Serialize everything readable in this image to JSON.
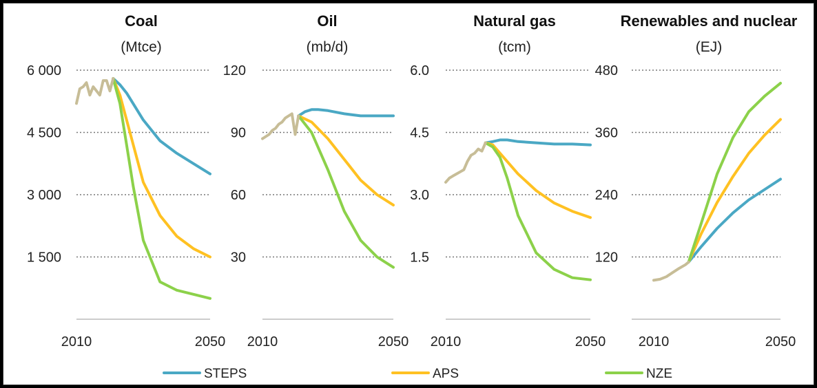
{
  "chart_data": [
    {
      "type": "line",
      "title": "Coal",
      "unit": "(Mtce)",
      "ylim": [
        0,
        6000
      ],
      "xlim": [
        2010,
        2050
      ],
      "y_ticks": [
        1500,
        3000,
        4500,
        6000
      ],
      "y_tick_labels": [
        "1 500",
        "3 000",
        "4 500",
        "6 000"
      ],
      "x_tick_labels": [
        "2010",
        "2050"
      ],
      "history": {
        "x": [
          2010,
          2011,
          2012,
          2013,
          2014,
          2015,
          2016,
          2017,
          2018,
          2019,
          2020,
          2021
        ],
        "values": [
          5200,
          5550,
          5600,
          5700,
          5400,
          5600,
          5500,
          5400,
          5750,
          5750,
          5500,
          5800
        ]
      },
      "series": [
        {
          "name": "STEPS",
          "x": [
            2021,
            2023,
            2025,
            2030,
            2035,
            2040,
            2045,
            2050
          ],
          "values": [
            5800,
            5650,
            5450,
            4800,
            4300,
            4000,
            3750,
            3500
          ]
        },
        {
          "name": "APS",
          "x": [
            2021,
            2023,
            2025,
            2030,
            2035,
            2040,
            2045,
            2050
          ],
          "values": [
            5800,
            5400,
            4800,
            3300,
            2500,
            2000,
            1700,
            1500
          ]
        },
        {
          "name": "NZE",
          "x": [
            2021,
            2023,
            2025,
            2027,
            2030,
            2035,
            2040,
            2045,
            2050
          ],
          "values": [
            5800,
            5200,
            4200,
            3200,
            1900,
            900,
            700,
            600,
            500
          ]
        }
      ]
    },
    {
      "type": "line",
      "title": "Oil",
      "unit": "(mb/d)",
      "ylim": [
        0,
        120
      ],
      "xlim": [
        2010,
        2050
      ],
      "y_ticks": [
        30,
        60,
        90,
        120
      ],
      "y_tick_labels": [
        "30",
        "60",
        "90",
        "120"
      ],
      "x_tick_labels": [
        "2010",
        "2050"
      ],
      "history": {
        "x": [
          2010,
          2011,
          2012,
          2013,
          2014,
          2015,
          2016,
          2017,
          2018,
          2019,
          2020,
          2021
        ],
        "values": [
          87,
          88,
          89,
          91,
          92,
          94,
          95,
          97,
          98,
          99,
          89,
          98
        ]
      },
      "series": [
        {
          "name": "STEPS",
          "x": [
            2021,
            2023,
            2025,
            2027,
            2030,
            2035,
            2040,
            2045,
            2050
          ],
          "values": [
            98,
            100,
            101,
            101,
            100.5,
            99,
            98,
            98,
            98
          ]
        },
        {
          "name": "APS",
          "x": [
            2021,
            2025,
            2030,
            2035,
            2040,
            2045,
            2050
          ],
          "values": [
            98,
            95,
            87,
            77,
            67,
            60,
            55
          ]
        },
        {
          "name": "NZE",
          "x": [
            2021,
            2025,
            2030,
            2035,
            2040,
            2045,
            2050
          ],
          "values": [
            98,
            90,
            72,
            52,
            38,
            30,
            25
          ]
        }
      ]
    },
    {
      "type": "line",
      "title": "Natural gas",
      "unit": "(tcm)",
      "ylim": [
        0,
        6
      ],
      "xlim": [
        2010,
        2050
      ],
      "y_ticks": [
        1.5,
        3.0,
        4.5,
        6.0
      ],
      "y_tick_labels": [
        "1.5",
        "3.0",
        "4.5",
        "6.0"
      ],
      "x_tick_labels": [
        "2010",
        "2050"
      ],
      "history": {
        "x": [
          2010,
          2011,
          2012,
          2013,
          2014,
          2015,
          2016,
          2017,
          2018,
          2019,
          2020,
          2021
        ],
        "values": [
          3.3,
          3.4,
          3.45,
          3.5,
          3.55,
          3.6,
          3.8,
          3.95,
          4.0,
          4.1,
          4.05,
          4.25
        ]
      },
      "series": [
        {
          "name": "STEPS",
          "x": [
            2021,
            2023,
            2025,
            2027,
            2030,
            2035,
            2040,
            2045,
            2050
          ],
          "values": [
            4.25,
            4.28,
            4.32,
            4.32,
            4.28,
            4.25,
            4.22,
            4.22,
            4.2
          ]
        },
        {
          "name": "APS",
          "x": [
            2021,
            2023,
            2025,
            2030,
            2035,
            2040,
            2045,
            2050
          ],
          "values": [
            4.25,
            4.2,
            4.0,
            3.5,
            3.1,
            2.8,
            2.6,
            2.45
          ]
        },
        {
          "name": "NZE",
          "x": [
            2021,
            2023,
            2025,
            2027,
            2030,
            2035,
            2040,
            2045,
            2050
          ],
          "values": [
            4.25,
            4.15,
            3.9,
            3.4,
            2.5,
            1.6,
            1.2,
            1.0,
            0.95
          ]
        }
      ]
    },
    {
      "type": "line",
      "title": "Renewables and nuclear",
      "unit": "(EJ)",
      "ylim": [
        0,
        480
      ],
      "xlim": [
        2010,
        2050
      ],
      "y_ticks": [
        120,
        240,
        360,
        480
      ],
      "y_tick_labels": [
        "120",
        "240",
        "360",
        "480"
      ],
      "x_tick_labels": [
        "2010",
        "2050"
      ],
      "history": {
        "x": [
          2010,
          2012,
          2014,
          2016,
          2018,
          2020,
          2021
        ],
        "values": [
          75,
          77,
          82,
          90,
          98,
          105,
          110
        ]
      },
      "series": [
        {
          "name": "STEPS",
          "x": [
            2021,
            2025,
            2030,
            2035,
            2040,
            2045,
            2050
          ],
          "values": [
            110,
            140,
            175,
            205,
            230,
            250,
            270
          ]
        },
        {
          "name": "APS",
          "x": [
            2021,
            2025,
            2030,
            2035,
            2040,
            2045,
            2050
          ],
          "values": [
            110,
            165,
            225,
            275,
            320,
            355,
            385
          ]
        },
        {
          "name": "NZE",
          "x": [
            2021,
            2025,
            2030,
            2035,
            2040,
            2045,
            2050
          ],
          "values": [
            110,
            185,
            280,
            350,
            400,
            430,
            455
          ]
        }
      ]
    }
  ],
  "legend": [
    {
      "name": "STEPS",
      "color": "#4aa8c4"
    },
    {
      "name": "APS",
      "color": "#ffc122"
    },
    {
      "name": "NZE",
      "color": "#8cd14a"
    }
  ],
  "colors": {
    "history": "#c7bd97",
    "STEPS": "#4aa8c4",
    "APS": "#ffc122",
    "NZE": "#8cd14a",
    "grid": "#777777",
    "axis": "#cccccc"
  }
}
